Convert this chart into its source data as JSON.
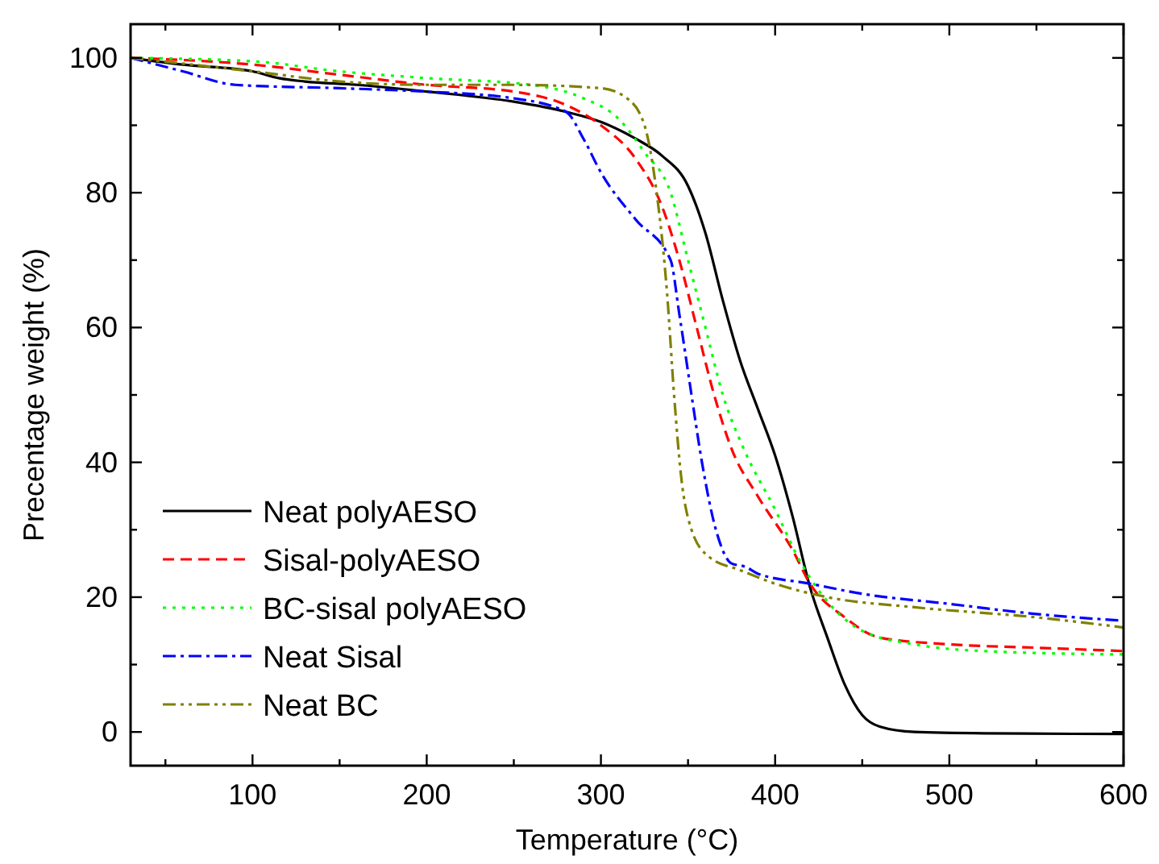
{
  "chart_data": {
    "type": "line",
    "xlabel": "Temperature (°C)",
    "ylabel": "Precentage weight (%)",
    "xlim": [
      30,
      600
    ],
    "ylim": [
      -5,
      105
    ],
    "xticks": [
      {
        "value": 50,
        "label": null
      },
      100,
      {
        "value": 150,
        "label": null
      },
      200,
      {
        "value": 250,
        "label": null
      },
      300,
      {
        "value": 350,
        "label": null
      },
      400,
      {
        "value": 450,
        "label": null
      },
      500,
      {
        "value": 550,
        "label": null
      },
      600
    ],
    "yticks": [
      0,
      {
        "value": 10,
        "label": null
      },
      20,
      {
        "value": 30,
        "label": null
      },
      40,
      {
        "value": 50,
        "label": null
      },
      60,
      {
        "value": 70,
        "label": null
      },
      80,
      {
        "value": 90,
        "label": null
      },
      100
    ],
    "legend": "bottom left",
    "grid": false,
    "series": [
      {
        "name": "Neat polyAESO",
        "color": "#000000",
        "line_style": "solid",
        "x": [
          30,
          60,
          100,
          115,
          130,
          160,
          200,
          250,
          280,
          300,
          320,
          335,
          350,
          360,
          370,
          380,
          390,
          400,
          410,
          420,
          430,
          440,
          450,
          460,
          480,
          520,
          600
        ],
        "values": [
          100,
          99,
          98,
          97,
          96.5,
          96,
          95,
          93.5,
          92,
          90.5,
          88,
          85.5,
          81,
          74,
          64,
          55,
          48,
          41,
          32,
          21.5,
          14,
          7,
          2.5,
          0.8,
          0,
          -0.2,
          -0.3
        ]
      },
      {
        "name": "Sisal-polyAESO",
        "color": "#ff0000",
        "line_style": "dashed",
        "x": [
          30,
          100,
          150,
          200,
          250,
          280,
          300,
          320,
          335,
          345,
          355,
          365,
          375,
          390,
          410,
          420,
          440,
          460,
          500,
          550,
          600
        ],
        "values": [
          100,
          99,
          97.5,
          96,
          95,
          93,
          90,
          85,
          78,
          70,
          60,
          50,
          42,
          35,
          27,
          22,
          17,
          14,
          13,
          12.5,
          12
        ]
      },
      {
        "name": "BC-sisal polyAESO",
        "color": "#00ff00",
        "line_style": "dotted",
        "x": [
          30,
          100,
          150,
          200,
          260,
          290,
          310,
          325,
          340,
          350,
          360,
          370,
          382,
          400,
          415,
          425,
          450,
          480,
          520,
          600
        ],
        "values": [
          100,
          99.5,
          98,
          97,
          96,
          94,
          91,
          86,
          80,
          70,
          60,
          50,
          42,
          33,
          25,
          21,
          15,
          13,
          12,
          11.5
        ]
      },
      {
        "name": "Neat Sisal",
        "color": "#0000ff",
        "line_style": "dashdot",
        "x": [
          30,
          60,
          90,
          150,
          200,
          250,
          280,
          290,
          300,
          320,
          340,
          345,
          352,
          358,
          366,
          375,
          383,
          390,
          420,
          450,
          500,
          550,
          600
        ],
        "values": [
          100,
          98,
          96,
          95.5,
          95,
          94,
          92,
          88,
          83,
          76,
          70,
          62,
          50,
          40,
          30,
          25,
          24.5,
          23.5,
          22,
          20.5,
          19,
          17.5,
          16.5
        ]
      },
      {
        "name": "Neat BC",
        "color": "#808000",
        "line_style": "dashdotdot",
        "x": [
          30,
          100,
          150,
          200,
          250,
          300,
          315,
          325,
          332,
          338,
          342,
          346,
          352,
          362,
          380,
          400,
          430,
          480,
          550,
          600
        ],
        "values": [
          100,
          98,
          96.5,
          96,
          96,
          95.5,
          94,
          90,
          80,
          65,
          50,
          38,
          30,
          26,
          24,
          22,
          20,
          18.5,
          17,
          15.5
        ]
      }
    ]
  }
}
